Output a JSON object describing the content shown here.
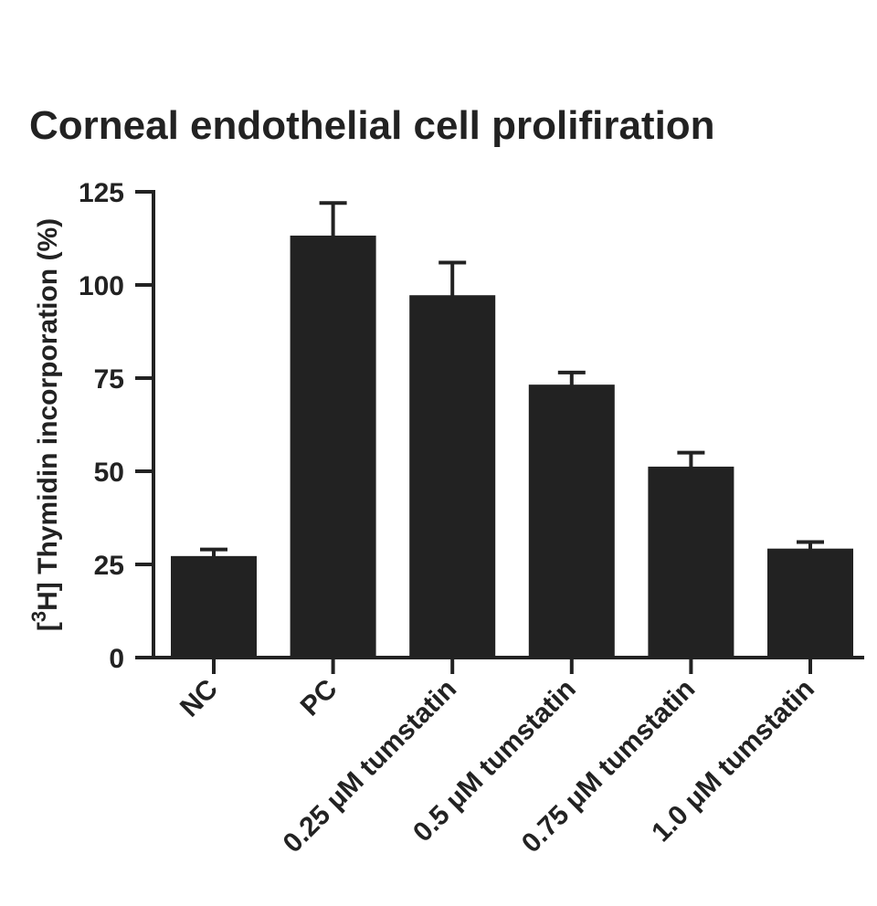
{
  "chart_data": {
    "type": "bar",
    "title": "Corneal endothelial cell prolifiration",
    "ylabel_superscript": "3",
    "ylabel_prefix": "[",
    "ylabel_rest": "H] Thymidin incorporation (%)",
    "xlabel": "",
    "ylim": [
      0,
      125
    ],
    "yticks": [
      "0",
      "25",
      "50",
      "75",
      "100",
      "125"
    ],
    "categories": [
      "NC",
      "PC",
      "0.25 μM tumstatin",
      "0.5 μM tumstatin",
      "0.75 μM  tumstatin",
      "1.0 μM  tumstatin"
    ],
    "values": [
      27,
      113,
      97,
      73,
      51,
      29
    ],
    "errors": [
      2,
      9,
      9,
      3.5,
      4,
      2
    ],
    "bar_color": "#222222",
    "grid": false,
    "legend": "none"
  }
}
